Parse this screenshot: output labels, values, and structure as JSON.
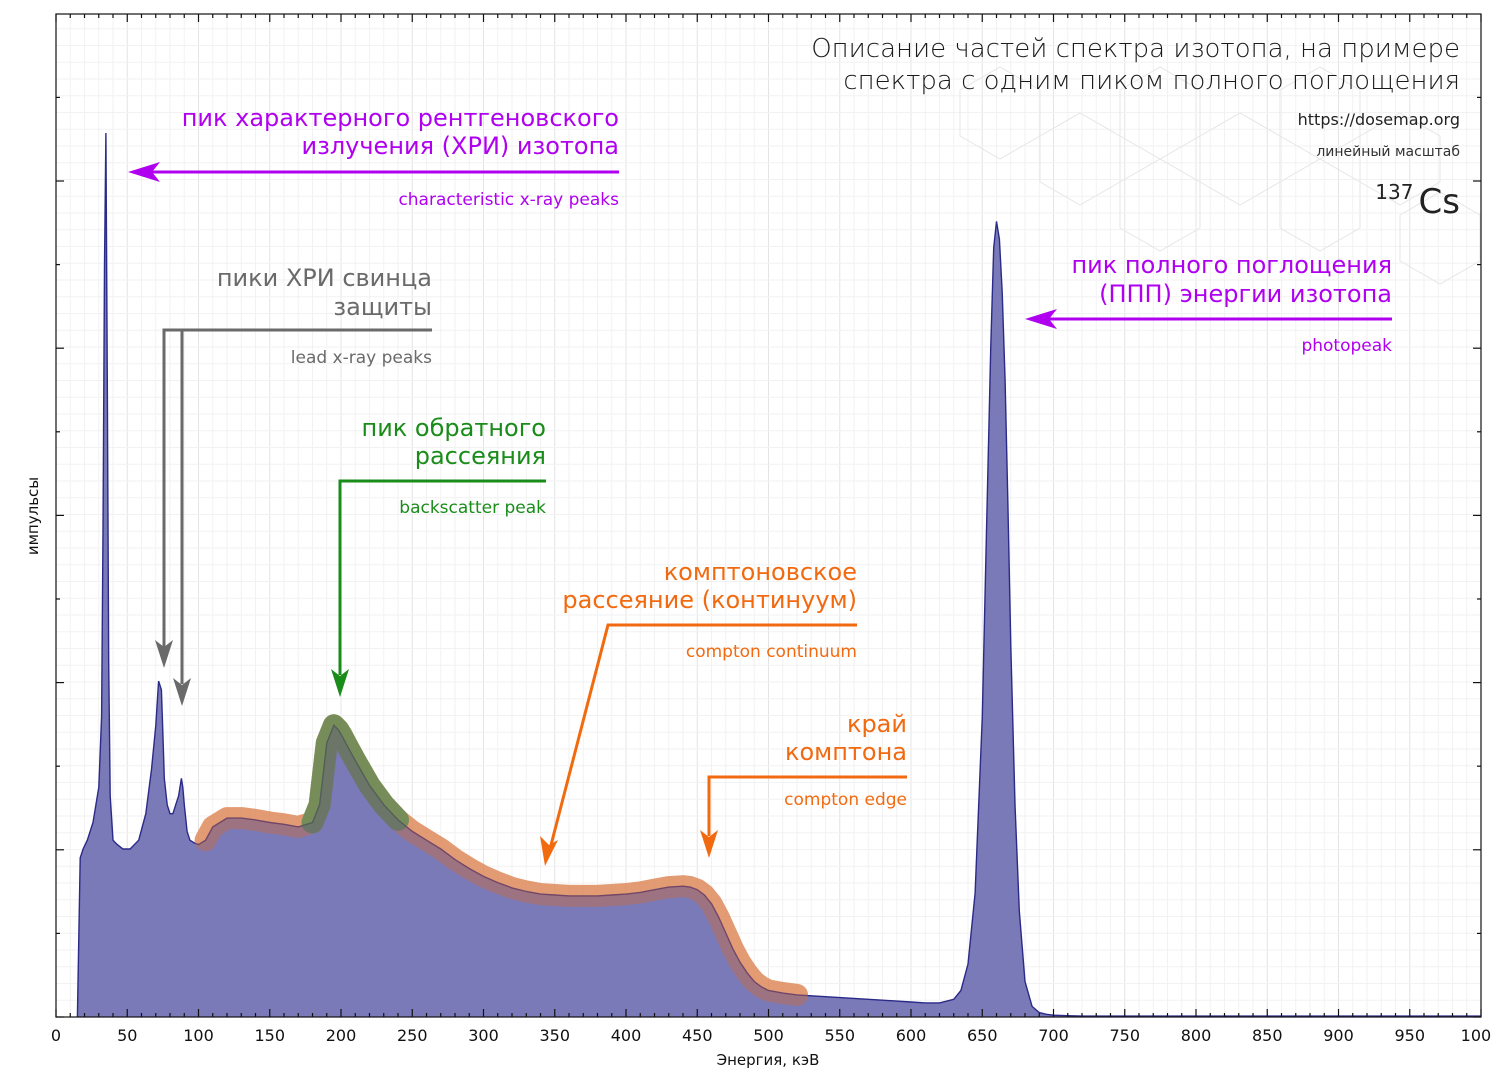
{
  "header": {
    "title_line1": "Описание частей спектра изотопа, на примере",
    "title_line2": "спектра с одним пиком полного поглощения",
    "url": "https://dosemap.org",
    "scale_note": "линейный масштаб",
    "isotope_mass": "137",
    "isotope_symbol": "Cs"
  },
  "colors": {
    "spectrum_fill": "#7a7ab8",
    "spectrum_line": "#2a2a88",
    "violet": "#b000f0",
    "gray": "#6a6a6a",
    "green": "#1a8c1a",
    "orange": "#f26a10",
    "orange_band": "#f6a46c",
    "green_band": "#7cc87c"
  },
  "annotations": {
    "xray": {
      "ru_line1": "пик характерного рентгеновского",
      "ru_line2": "излучения (ХРИ) изотопа",
      "en": "characteristic  x-ray  peaks"
    },
    "lead": {
      "ru_line1": "пики ХРИ свинца",
      "ru_line2": "защиты",
      "en": "lead x-ray peaks"
    },
    "backscatter": {
      "ru_line1": "пик обратного",
      "ru_line2": "рассеяния",
      "en": "backscatter peak"
    },
    "compton_continuum": {
      "ru_line1": "комптоновское",
      "ru_line2": "рассеяние (континуум)",
      "en": "compton continuum"
    },
    "compton_edge": {
      "ru_line1": "край",
      "ru_line2": "комптона",
      "en": "compton edge"
    },
    "photopeak": {
      "ru_line1": "пик полного поглощения",
      "ru_line2": "(ППП) энергии изотопа",
      "en": "photopeak"
    }
  },
  "chart_data": {
    "type": "area",
    "xlabel": "Энергия, кэВ",
    "ylabel": "импульсы",
    "xlim": [
      0,
      1000
    ],
    "ylim": [
      0,
      1
    ],
    "x_ticks": [
      0,
      50,
      100,
      150,
      200,
      250,
      300,
      350,
      400,
      450,
      500,
      550,
      600,
      650,
      700,
      750,
      800,
      850,
      900,
      950,
      1000
    ],
    "y_tick_labels_shown": false,
    "grid": true,
    "series": [
      {
        "x": [
          15,
          17,
          19,
          22,
          26,
          30,
          32,
          33,
          34,
          35,
          36,
          37,
          38,
          40,
          43,
          47,
          52,
          58,
          63,
          67,
          70,
          72,
          74,
          75,
          76,
          78,
          80,
          82,
          84,
          86,
          88,
          89,
          90,
          92,
          94,
          97,
          100,
          105,
          110,
          120,
          130,
          140,
          150,
          160,
          170,
          180,
          185,
          190,
          195,
          198,
          200,
          205,
          210,
          220,
          230,
          240,
          250,
          260,
          270,
          280,
          290,
          300,
          310,
          320,
          330,
          340,
          350,
          360,
          370,
          380,
          390,
          400,
          410,
          420,
          430,
          440,
          445,
          450,
          455,
          460,
          465,
          470,
          475,
          480,
          485,
          490,
          495,
          500,
          510,
          520,
          530,
          540,
          550,
          560,
          570,
          580,
          590,
          600,
          610,
          620,
          630,
          635,
          640,
          645,
          650,
          653,
          656,
          658,
          660,
          662,
          664,
          666,
          668,
          670,
          673,
          676,
          680,
          685,
          690,
          695,
          700,
          710,
          720,
          740,
          760,
          800,
          850,
          900,
          950,
          1000
        ],
        "y": [
          0.0,
          0.18,
          0.19,
          0.2,
          0.22,
          0.26,
          0.34,
          0.55,
          0.85,
          1.0,
          0.72,
          0.4,
          0.25,
          0.2,
          0.195,
          0.19,
          0.19,
          0.2,
          0.23,
          0.28,
          0.33,
          0.38,
          0.37,
          0.32,
          0.27,
          0.24,
          0.23,
          0.23,
          0.24,
          0.25,
          0.27,
          0.26,
          0.24,
          0.21,
          0.2,
          0.197,
          0.195,
          0.2,
          0.215,
          0.225,
          0.225,
          0.223,
          0.22,
          0.218,
          0.215,
          0.22,
          0.24,
          0.31,
          0.33,
          0.325,
          0.32,
          0.305,
          0.29,
          0.262,
          0.24,
          0.223,
          0.21,
          0.2,
          0.19,
          0.178,
          0.168,
          0.159,
          0.152,
          0.146,
          0.142,
          0.139,
          0.138,
          0.137,
          0.137,
          0.137,
          0.138,
          0.139,
          0.141,
          0.144,
          0.147,
          0.148,
          0.147,
          0.144,
          0.138,
          0.128,
          0.113,
          0.095,
          0.077,
          0.062,
          0.05,
          0.04,
          0.034,
          0.03,
          0.027,
          0.025,
          0.024,
          0.023,
          0.022,
          0.021,
          0.02,
          0.019,
          0.018,
          0.017,
          0.016,
          0.016,
          0.02,
          0.03,
          0.06,
          0.14,
          0.34,
          0.55,
          0.76,
          0.87,
          0.9,
          0.88,
          0.82,
          0.72,
          0.58,
          0.42,
          0.24,
          0.12,
          0.04,
          0.012,
          0.005,
          0.003,
          0.002,
          0.0015,
          0.001,
          0.001,
          0.001,
          0.001,
          0.001,
          0.001,
          0.001,
          0.001
        ]
      }
    ]
  }
}
